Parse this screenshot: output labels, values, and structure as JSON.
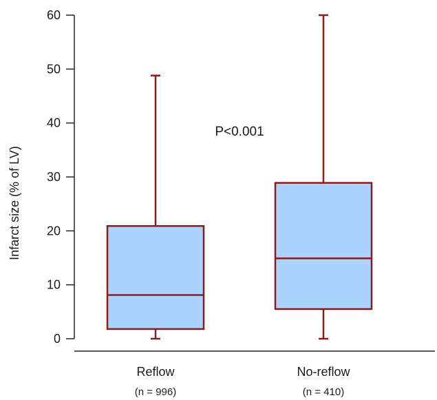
{
  "chart_data": {
    "type": "box",
    "ylabel": "Infarct size (% of LV)",
    "ylim": [
      0,
      60
    ],
    "yticks": [
      0,
      10,
      20,
      30,
      40,
      50,
      60
    ],
    "categories": [
      "Reflow",
      "No-reflow"
    ],
    "category_sublabels": [
      "(n = 996)",
      "(n = 410)"
    ],
    "series": [
      {
        "category": "Reflow",
        "min": 0,
        "q1": 1.8,
        "median": 8.1,
        "q3": 20.9,
        "max": 48.8
      },
      {
        "category": "No-reflow",
        "min": 0,
        "q1": 5.5,
        "median": 14.9,
        "q3": 28.9,
        "max": 60
      }
    ],
    "annotation": "P<0.001",
    "colors": {
      "box_fill": "#aad4ff",
      "box_stroke": "#8b1a1a",
      "axis": "#222222"
    }
  }
}
